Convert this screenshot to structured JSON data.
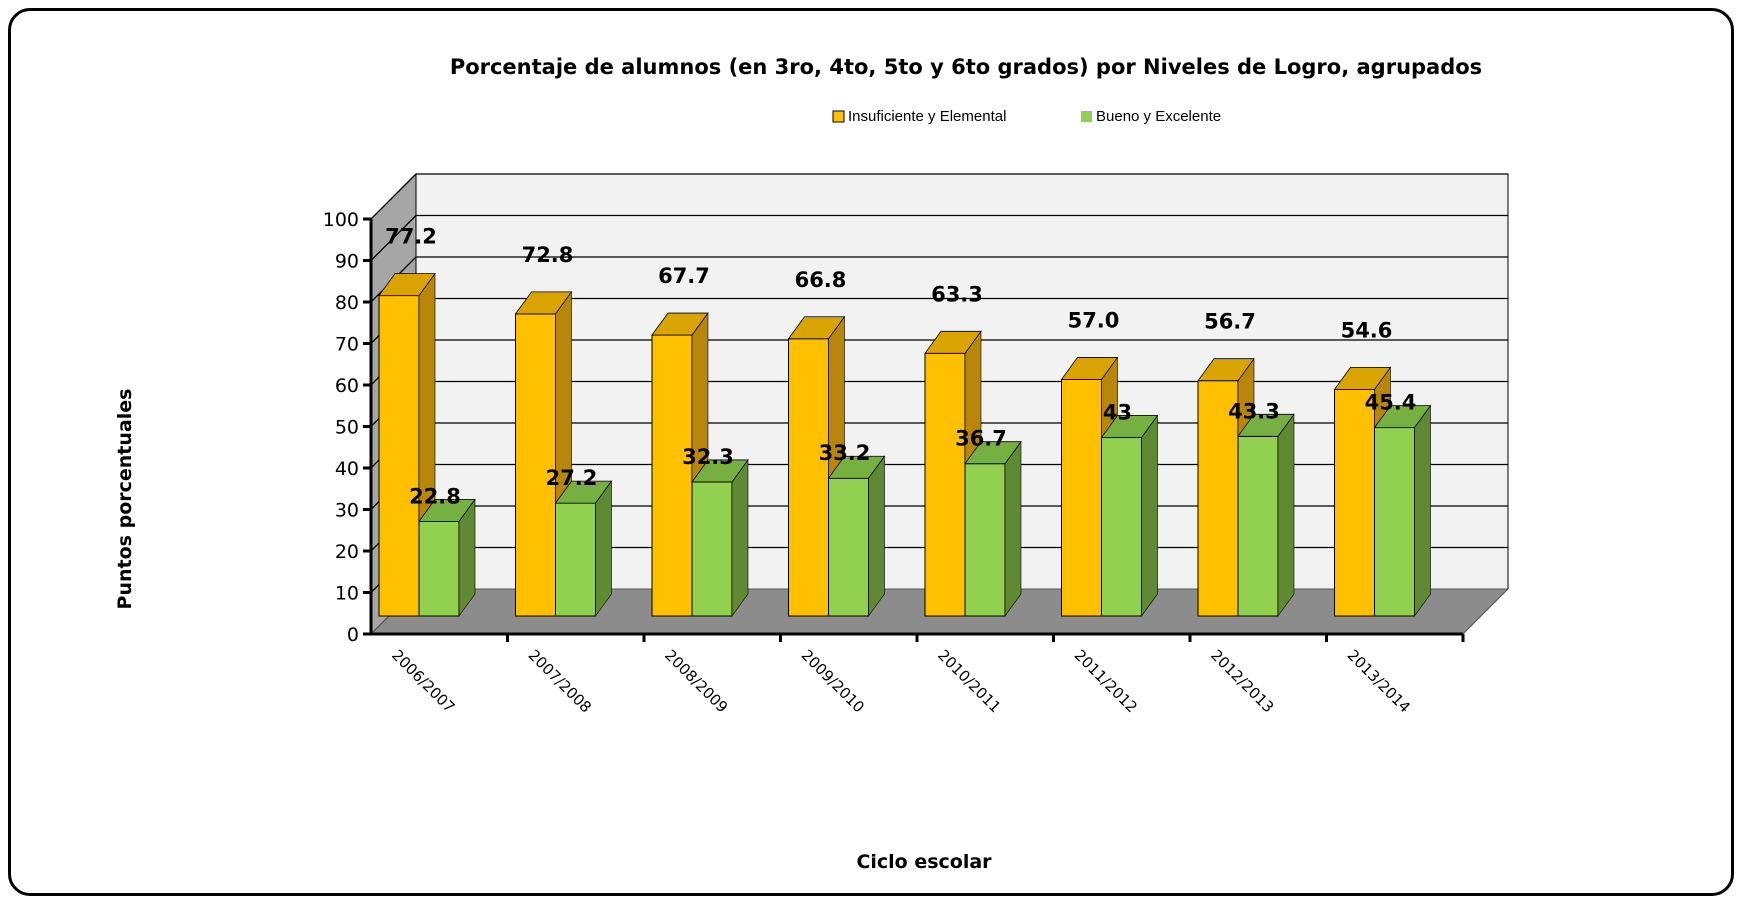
{
  "chart_data": {
    "type": "bar",
    "title": "Porcentaje de alumnos (en 3ro, 4to, 5to y 6to grados) por Niveles de Logro, agrupados",
    "xlabel": "Ciclo escolar",
    "ylabel": "Puntos porcentuales",
    "ylim": [
      0,
      100
    ],
    "yticks": [
      "0",
      "10",
      "20",
      "30",
      "40",
      "50",
      "60",
      "70",
      "80",
      "90",
      "100"
    ],
    "grid": true,
    "legend_position": "top",
    "categories": [
      "2006/2007",
      "2007/2008",
      "2008/2009",
      "2009/2010",
      "2010/2011",
      "2011/2012",
      "2012/2013",
      "2013/2014"
    ],
    "series": [
      {
        "name": "Insuficiente y Elemental",
        "values": [
          77.2,
          72.8,
          67.7,
          66.8,
          63.3,
          57.0,
          56.7,
          54.6
        ],
        "labels": [
          "77.2",
          "72.8",
          "67.7",
          "66.8",
          "63.3",
          "57.0",
          "56.7",
          "54.6"
        ],
        "color": "#ffc000",
        "side_color": "#b8860b",
        "top_color": "#d9a400"
      },
      {
        "name": "Bueno y Excelente",
        "values": [
          22.8,
          27.2,
          32.3,
          33.2,
          36.7,
          43,
          43.3,
          45.4
        ],
        "labels": [
          "22.8",
          "27.2",
          "32.3",
          "33.2",
          "36.7",
          "43",
          "43.3",
          "45.4"
        ],
        "color": "#92d050",
        "side_color": "#5f8a33",
        "top_color": "#76b041"
      }
    ]
  },
  "colors": {
    "wall": "#f2f2f2",
    "side_wall": "#a6a6a6",
    "floor": "#8c8c8c"
  }
}
